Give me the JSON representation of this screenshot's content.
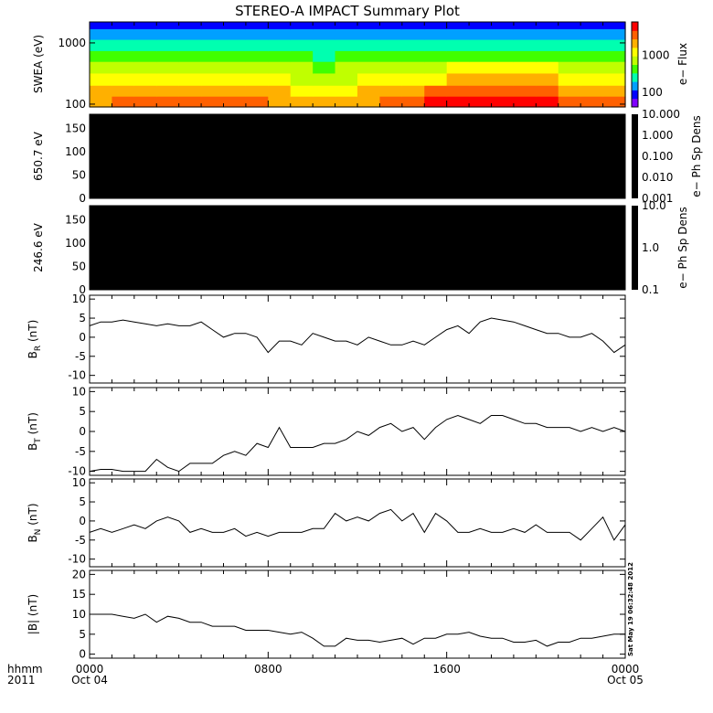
{
  "figure": {
    "title": "STEREO-A IMPACT Summary Plot",
    "timestamp": "Sat May 19 06:32:48 2012",
    "time_axis": {
      "corner_label_1": "hhmm",
      "corner_label_2": "2011",
      "ticks": [
        {
          "hhmm": "0000",
          "date": "Oct 04"
        },
        {
          "hhmm": "0800",
          "date": ""
        },
        {
          "hhmm": "1600",
          "date": ""
        },
        {
          "hhmm": "0000",
          "date": "Oct 05"
        }
      ]
    }
  },
  "chart_data": [
    {
      "type": "heatmap",
      "panel": "swea",
      "ylabel": "SWEA (eV)",
      "yscale": "log",
      "ylim": [
        90,
        2200
      ],
      "yticks": [
        "100",
        "1000"
      ],
      "colorbar": {
        "label": "e− Flux",
        "scale": "log",
        "ticks": [
          "100",
          "1000"
        ],
        "colors": [
          "#8000ff",
          "#0000ff",
          "#00a0ff",
          "#00ffb0",
          "#40ff00",
          "#c0ff00",
          "#ffff00",
          "#ffb000",
          "#ff6000",
          "#ff0000"
        ]
      },
      "x_hours": [
        0,
        1,
        2,
        3,
        4,
        5,
        6,
        7,
        8,
        9,
        10,
        11,
        12,
        13,
        14,
        15,
        16,
        17,
        18,
        19,
        20,
        21,
        22,
        23,
        24
      ],
      "energy_eV": [
        2000,
        1400,
        900,
        600,
        400,
        250,
        160,
        110
      ],
      "z_level": [
        [
          1,
          2,
          3,
          4,
          5,
          6,
          7,
          7
        ],
        [
          1,
          2,
          3,
          4,
          5,
          6,
          7,
          8
        ],
        [
          1,
          2,
          3,
          4,
          5,
          6,
          7,
          8
        ],
        [
          1,
          2,
          3,
          4,
          5,
          6,
          7,
          8
        ],
        [
          1,
          2,
          3,
          4,
          5,
          6,
          7,
          8
        ],
        [
          1,
          2,
          3,
          4,
          5,
          6,
          7,
          8
        ],
        [
          1,
          2,
          3,
          4,
          5,
          6,
          7,
          8
        ],
        [
          1,
          2,
          3,
          4,
          5,
          6,
          7,
          8
        ],
        [
          1,
          2,
          3,
          4,
          5,
          6,
          7,
          7
        ],
        [
          1,
          2,
          3,
          4,
          5,
          5,
          6,
          7
        ],
        [
          1,
          2,
          3,
          3,
          4,
          5,
          6,
          7
        ],
        [
          1,
          2,
          3,
          4,
          5,
          5,
          6,
          7
        ],
        [
          1,
          2,
          3,
          4,
          5,
          6,
          7,
          7
        ],
        [
          1,
          2,
          3,
          4,
          5,
          6,
          7,
          8
        ],
        [
          1,
          2,
          3,
          4,
          5,
          6,
          7,
          8
        ],
        [
          1,
          2,
          3,
          4,
          5,
          6,
          8,
          9
        ],
        [
          1,
          2,
          3,
          4,
          6,
          7,
          8,
          9
        ],
        [
          1,
          2,
          3,
          4,
          6,
          7,
          8,
          9
        ],
        [
          1,
          2,
          3,
          4,
          6,
          7,
          8,
          9
        ],
        [
          1,
          2,
          3,
          4,
          6,
          7,
          8,
          9
        ],
        [
          1,
          2,
          3,
          4,
          6,
          7,
          8,
          9
        ],
        [
          1,
          2,
          3,
          4,
          5,
          6,
          7,
          8
        ],
        [
          1,
          2,
          3,
          4,
          5,
          6,
          7,
          8
        ],
        [
          1,
          2,
          3,
          4,
          5,
          6,
          7,
          8
        ],
        [
          1,
          2,
          3,
          4,
          5,
          6,
          7,
          8
        ]
      ]
    },
    {
      "type": "heatmap",
      "panel": "pad650",
      "ylabel": "650.7 eV",
      "ylim": [
        0,
        180
      ],
      "yticks": [
        "0",
        "50",
        "100",
        "150"
      ],
      "fill": "#000000",
      "colorbar": {
        "label": "e− Ph Sp Dens",
        "scale": "log",
        "ticks": [
          "10.000",
          "1.000",
          "0.100",
          "0.010",
          "0.001"
        ]
      }
    },
    {
      "type": "heatmap",
      "panel": "pad246",
      "ylabel": "246.6 eV",
      "ylim": [
        0,
        180
      ],
      "yticks": [
        "0",
        "50",
        "100",
        "150"
      ],
      "fill": "#000000",
      "colorbar": {
        "label": "e− Ph Sp Dens",
        "scale": "log",
        "ticks": [
          "10.0",
          "1.0",
          "0.1"
        ]
      }
    },
    {
      "type": "line",
      "panel": "br",
      "ylabel": {
        "base": "B",
        "sub": "R",
        "unit": " (nT)"
      },
      "ylim": [
        -12,
        11
      ],
      "yticks": [
        "10",
        "5",
        "0",
        "-5",
        "-10"
      ],
      "x_hours": [
        0,
        0.5,
        1,
        1.5,
        2,
        2.5,
        3,
        3.5,
        4,
        4.5,
        5,
        5.5,
        6,
        6.5,
        7,
        7.5,
        8,
        8.5,
        9,
        9.5,
        10,
        10.5,
        11,
        11.5,
        12,
        12.5,
        13,
        13.5,
        14,
        14.5,
        15,
        15.5,
        16,
        16.5,
        17,
        17.5,
        18,
        18.5,
        19,
        19.5,
        20,
        20.5,
        21,
        21.5,
        22,
        22.5,
        23,
        23.5,
        24
      ],
      "y": [
        3,
        4,
        4,
        4.5,
        4,
        3.5,
        3,
        3.5,
        3,
        3,
        4,
        2,
        0,
        1,
        1,
        0,
        -4,
        -1,
        -1,
        -2,
        1,
        0,
        -1,
        -1,
        -2,
        0,
        -1,
        -2,
        -2,
        -1,
        -2,
        0,
        2,
        3,
        1,
        4,
        5,
        4.5,
        4,
        3,
        2,
        1,
        1,
        0,
        0,
        1,
        -1,
        -4,
        -2
      ],
      "xlim": [
        0,
        24
      ]
    },
    {
      "type": "line",
      "panel": "bt",
      "ylabel": {
        "base": "B",
        "sub": "T",
        "unit": " (nT)"
      },
      "ylim": [
        -11,
        11
      ],
      "yticks": [
        "10",
        "5",
        "0",
        "-5",
        "-10"
      ],
      "x_hours": [
        0,
        0.5,
        1,
        1.5,
        2,
        2.5,
        3,
        3.5,
        4,
        4.5,
        5,
        5.5,
        6,
        6.5,
        7,
        7.5,
        8,
        8.5,
        9,
        9.5,
        10,
        10.5,
        11,
        11.5,
        12,
        12.5,
        13,
        13.5,
        14,
        14.5,
        15,
        15.5,
        16,
        16.5,
        17,
        17.5,
        18,
        18.5,
        19,
        19.5,
        20,
        20.5,
        21,
        21.5,
        22,
        22.5,
        23,
        23.5,
        24
      ],
      "y": [
        -10,
        -9.5,
        -9.5,
        -10,
        -10,
        -10,
        -7,
        -9,
        -10,
        -8,
        -8,
        -8,
        -6,
        -5,
        -6,
        -3,
        -4,
        1,
        -4,
        -4,
        -4,
        -3,
        -3,
        -2,
        0,
        -1,
        1,
        2,
        0,
        1,
        -2,
        1,
        3,
        4,
        3,
        2,
        4,
        4,
        3,
        2,
        2,
        1,
        1,
        1,
        0,
        1,
        0,
        1,
        0
      ],
      "xlim": [
        0,
        24
      ]
    },
    {
      "type": "line",
      "panel": "bn",
      "ylabel": {
        "base": "B",
        "sub": "N",
        "unit": " (nT)"
      },
      "ylim": [
        -12,
        11
      ],
      "yticks": [
        "10",
        "5",
        "0",
        "-5",
        "-10"
      ],
      "x_hours": [
        0,
        0.5,
        1,
        1.5,
        2,
        2.5,
        3,
        3.5,
        4,
        4.5,
        5,
        5.5,
        6,
        6.5,
        7,
        7.5,
        8,
        8.5,
        9,
        9.5,
        10,
        10.5,
        11,
        11.5,
        12,
        12.5,
        13,
        13.5,
        14,
        14.5,
        15,
        15.5,
        16,
        16.5,
        17,
        17.5,
        18,
        18.5,
        19,
        19.5,
        20,
        20.5,
        21,
        21.5,
        22,
        22.5,
        23,
        23.5,
        24
      ],
      "y": [
        -3,
        -2,
        -3,
        -2,
        -1,
        -2,
        0,
        1,
        0,
        -3,
        -2,
        -3,
        -3,
        -2,
        -4,
        -3,
        -4,
        -3,
        -3,
        -3,
        -2,
        -2,
        2,
        0,
        1,
        0,
        2,
        3,
        0,
        2,
        -3,
        2,
        0,
        -3,
        -3,
        -2,
        -3,
        -3,
        -2,
        -3,
        -1,
        -3,
        -3,
        -3,
        -5,
        -2,
        1,
        -5,
        -1
      ],
      "xlim": [
        0,
        24
      ]
    },
    {
      "type": "line",
      "panel": "bmag",
      "ylabel": {
        "base": "|B|",
        "sub": "",
        "unit": " (nT)"
      },
      "ylim": [
        -1,
        21
      ],
      "yticks": [
        "20",
        "15",
        "10",
        "5",
        "0"
      ],
      "x_hours": [
        0,
        0.5,
        1,
        1.5,
        2,
        2.5,
        3,
        3.5,
        4,
        4.5,
        5,
        5.5,
        6,
        6.5,
        7,
        7.5,
        8,
        8.5,
        9,
        9.5,
        10,
        10.5,
        11,
        11.5,
        12,
        12.5,
        13,
        13.5,
        14,
        14.5,
        15,
        15.5,
        16,
        16.5,
        17,
        17.5,
        18,
        18.5,
        19,
        19.5,
        20,
        20.5,
        21,
        21.5,
        22,
        22.5,
        23,
        23.5,
        24
      ],
      "y": [
        10,
        10,
        10,
        9.5,
        9,
        10,
        8,
        9.5,
        9,
        8,
        8,
        7,
        7,
        7,
        6,
        6,
        6,
        5.5,
        5,
        5.5,
        4,
        2,
        2,
        4,
        3.5,
        3.5,
        3,
        3.5,
        4,
        2.5,
        4,
        4,
        5,
        5,
        5.5,
        4.5,
        4,
        4,
        3,
        3,
        3.5,
        2,
        3,
        3,
        4,
        4,
        4.5,
        5,
        5
      ],
      "xlim": [
        0,
        24
      ]
    }
  ]
}
